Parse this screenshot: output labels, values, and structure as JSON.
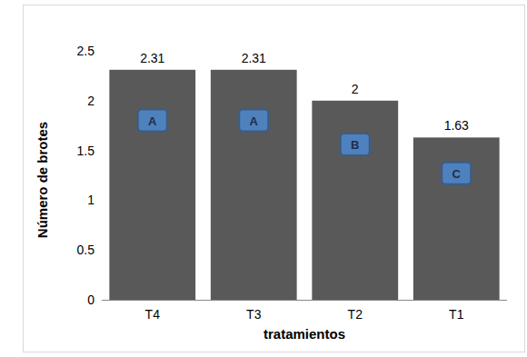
{
  "chart_data": {
    "type": "bar",
    "x_label": "tratamientos",
    "y_label": "Número de brotes",
    "categories": [
      "T4",
      "T3",
      "T2",
      "T1"
    ],
    "values": [
      2.31,
      2.31,
      2,
      1.63
    ],
    "annotations": [
      "A",
      "A",
      "B",
      "C"
    ],
    "color": "#595959",
    "ylim": [
      0,
      2.5
    ],
    "yticks": [
      0,
      0.5,
      1,
      1.5,
      2,
      2.5
    ],
    "grid": false,
    "data_labels": true
  }
}
